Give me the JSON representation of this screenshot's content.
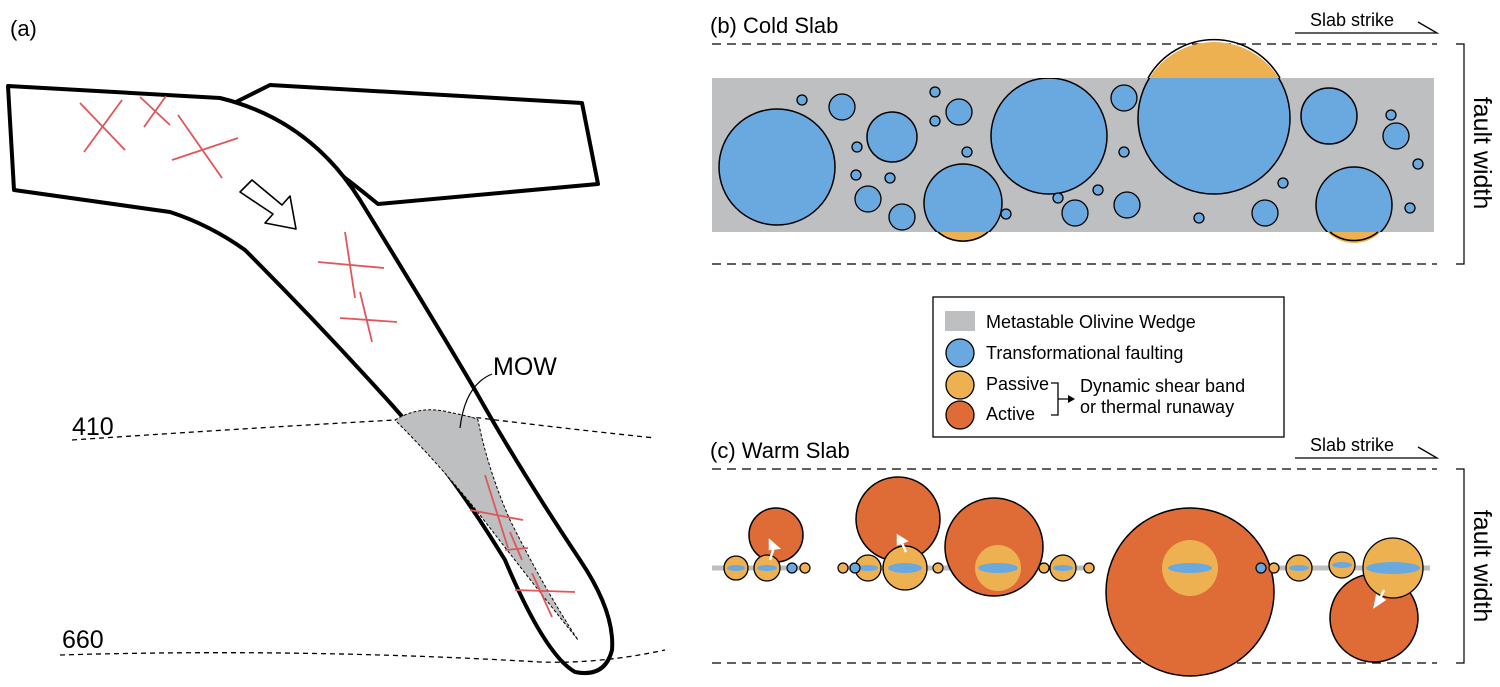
{
  "panel_a": {
    "label": "(a)",
    "depth_410": "410",
    "depth_660": "660",
    "mow_label": "MOW"
  },
  "panel_b": {
    "label": "(b) Cold Slab",
    "slab_strike": "Slab strike",
    "fault_width": "fault width"
  },
  "panel_c": {
    "label": "(c) Warm Slab",
    "slab_strike": "Slab strike",
    "fault_width": "fault width"
  },
  "legend": {
    "wedge": "Metastable Olivine Wedge",
    "transformational": "Transformational faulting",
    "passive": "Passive",
    "active": "Active",
    "dynamic_line1": "Dynamic shear band",
    "dynamic_line2": "or thermal runaway"
  },
  "colors": {
    "wedge_gray": "#bebfc1",
    "blue": "#6aa8e0",
    "passive_orange": "#eeb152",
    "active_orange": "#df6b37",
    "fault_red": "#e0565a"
  }
}
